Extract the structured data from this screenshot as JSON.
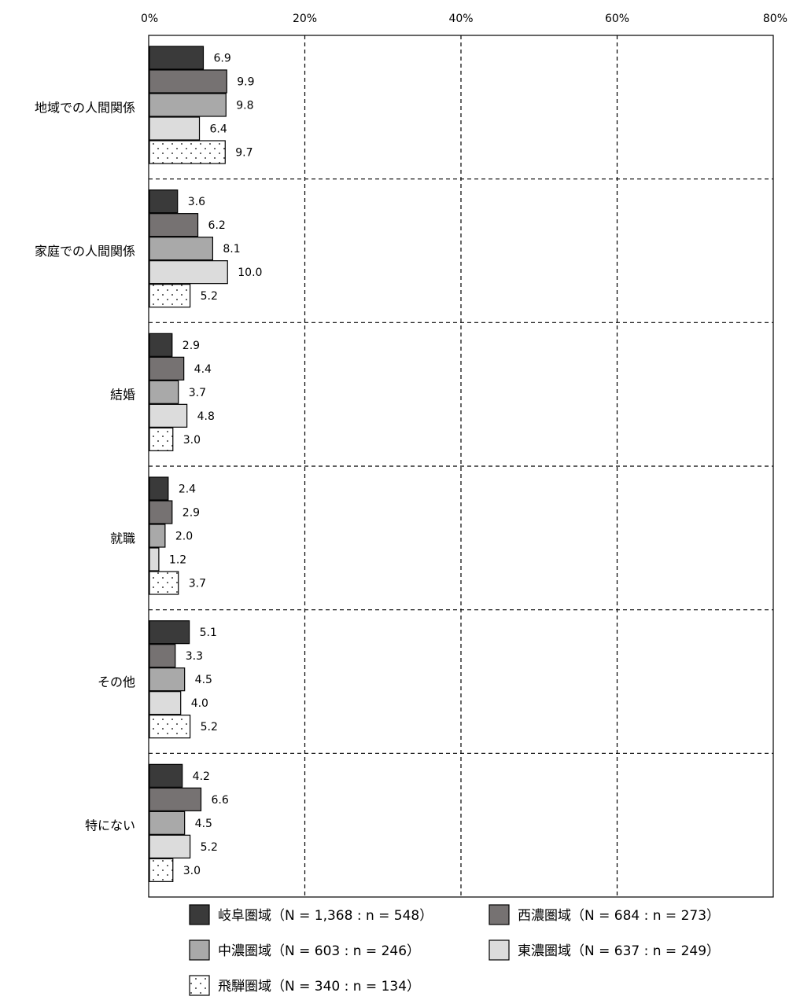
{
  "chart_data": {
    "type": "bar",
    "orientation": "horizontal",
    "xlim": [
      0,
      80
    ],
    "x_ticks": [
      "0%",
      "20%",
      "40%",
      "60%",
      "80%"
    ],
    "categories": [
      "地域での人間関係",
      "家庭での人間関係",
      "結婚",
      "就職",
      "その他",
      "特にない"
    ],
    "series": [
      {
        "name": "岐阜圏域（N = 1,368 : n = 548）",
        "fill": "#3a3a3a",
        "pattern": false,
        "values": [
          6.9,
          3.6,
          2.9,
          2.4,
          5.1,
          4.2
        ]
      },
      {
        "name": "西濃圏域（N = 684 : n = 273）",
        "fill": "#767272",
        "pattern": false,
        "values": [
          9.9,
          6.2,
          4.4,
          2.9,
          3.3,
          6.6
        ]
      },
      {
        "name": "中濃圏域（N = 603 : n = 246）",
        "fill": "#a9a9a9",
        "pattern": false,
        "values": [
          9.8,
          8.1,
          3.7,
          2.0,
          4.5,
          4.5
        ]
      },
      {
        "name": "東濃圏域（N = 637 : n = 249）",
        "fill": "#dcdcdc",
        "pattern": false,
        "values": [
          6.4,
          10.0,
          4.8,
          1.2,
          4.0,
          5.2
        ]
      },
      {
        "name": "飛騨圏域（N = 340 : n = 134）",
        "fill": "#ffffff",
        "pattern": true,
        "values": [
          9.7,
          5.2,
          3.0,
          3.7,
          5.2,
          3.0
        ]
      }
    ],
    "value_labels": [
      [
        "6.9",
        "3.6",
        "2.9",
        "2.4",
        "5.1",
        "4.2"
      ],
      [
        "9.9",
        "6.2",
        "4.4",
        "2.9",
        "3.3",
        "6.6"
      ],
      [
        "9.8",
        "8.1",
        "3.7",
        "2.0",
        "4.5",
        "4.5"
      ],
      [
        "6.4",
        "10.0",
        "4.8",
        "1.2",
        "4.0",
        "5.2"
      ],
      [
        "9.7",
        "5.2",
        "3.0",
        "3.7",
        "5.2",
        "3.0"
      ]
    ],
    "grid": true,
    "legend_position": "bottom"
  }
}
